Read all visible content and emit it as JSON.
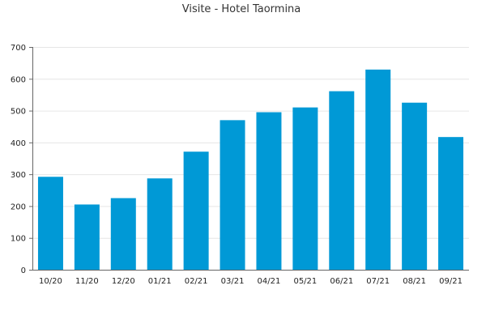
{
  "chart_data": {
    "type": "bar",
    "title": "Visite - Hotel Taormina",
    "categories": [
      "10/20",
      "11/20",
      "12/20",
      "01/21",
      "02/21",
      "03/21",
      "04/21",
      "05/21",
      "06/21",
      "07/21",
      "08/21",
      "09/21"
    ],
    "values": [
      292,
      205,
      225,
      287,
      371,
      470,
      495,
      510,
      561,
      629,
      525,
      417
    ],
    "xlabel": "",
    "ylabel": "",
    "ylim": [
      0,
      700
    ],
    "yticks": [
      0,
      100,
      200,
      300,
      400,
      500,
      600,
      700
    ],
    "grid": true,
    "bar_color": "#0099d6"
  }
}
